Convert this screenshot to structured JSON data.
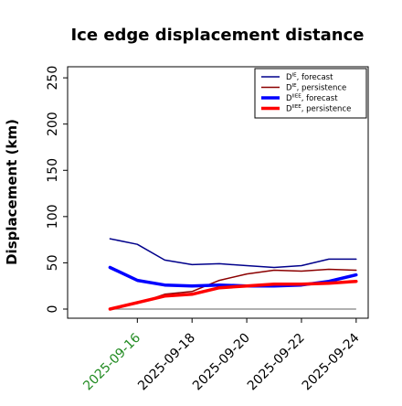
{
  "chart_data": {
    "type": "line",
    "title": "Ice edge displacement distance",
    "ylabel": "Displacement (km)",
    "xlabel": "",
    "ylim": [
      0,
      260
    ],
    "yticks": [
      0,
      50,
      100,
      150,
      200,
      250
    ],
    "xlim": [
      "2025-09-14",
      "2025-09-24"
    ],
    "xticks": [
      "2025-09-16",
      "2025-09-18",
      "2025-09-20",
      "2025-09-22",
      "2025-09-24"
    ],
    "highlight_tick": "2025-09-16",
    "highlight_color": "#228b22",
    "grid": false,
    "legend_position": "upper right",
    "dates": [
      "2025-09-15",
      "2025-09-16",
      "2025-09-17",
      "2025-09-18",
      "2025-09-19",
      "2025-09-20",
      "2025-09-21",
      "2025-09-22",
      "2025-09-23",
      "2025-09-24"
    ],
    "series": [
      {
        "name": "DIE, forecast",
        "legend_main": "D",
        "legend_sup": "IE",
        "legend_rest": ", forecast",
        "color": "#00008b",
        "width": 1.5,
        "values": [
          76,
          70,
          53,
          48,
          49,
          47,
          45,
          47,
          54,
          54
        ]
      },
      {
        "name": "DIE, persistence",
        "legend_main": "D",
        "legend_sup": "IE",
        "legend_rest": ", persistence",
        "color": "#8b0000",
        "width": 1.5,
        "values": [
          0,
          6,
          16,
          19,
          31,
          38,
          42,
          41,
          43,
          42
        ]
      },
      {
        "name": "DIIEE, forecast",
        "legend_main": "D",
        "legend_sup": "IIEE",
        "legend_rest": ", forecast",
        "color": "#0000ff",
        "width": 3.5,
        "values": [
          45,
          31,
          26,
          25,
          26,
          25,
          25,
          26,
          30,
          37
        ]
      },
      {
        "name": "DIIEE, persistence",
        "legend_main": "D",
        "legend_sup": "IIEE",
        "legend_rest": ", persistence",
        "color": "#ff0000",
        "width": 3.5,
        "values": [
          0,
          7,
          14,
          16,
          23,
          25,
          27,
          27,
          28,
          30
        ]
      }
    ],
    "baseline": {
      "value": 0,
      "color": "#808080"
    }
  }
}
